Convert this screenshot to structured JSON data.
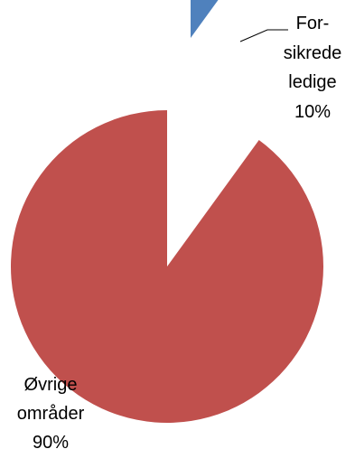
{
  "chart_data": {
    "type": "pie",
    "title": "",
    "legend": "none",
    "exploded_slice": "Forsikrede ledige",
    "slices": [
      {
        "name": "Forsikrede ledige",
        "label_lines": [
          "For-",
          "sikrede",
          "ledige",
          "10%"
        ],
        "value": 10,
        "color": "#4f81bd"
      },
      {
        "name": "Øvrige områder",
        "label_lines": [
          "Øvrige",
          "områder",
          "90%"
        ],
        "value": 90,
        "color": "#c0504d"
      }
    ]
  }
}
